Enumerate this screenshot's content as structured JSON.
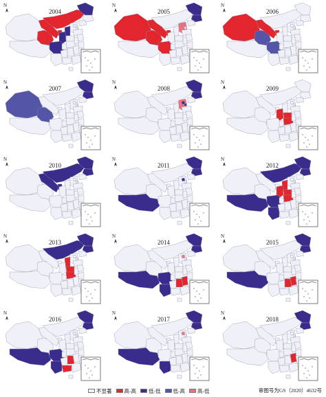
{
  "colors": {
    "ns": "#f0f1f8",
    "hh": "#e3262d",
    "ll": "#3a2c8c",
    "lh": "#5555a8",
    "hl": "#f07080"
  },
  "legend": [
    {
      "key": "ns",
      "label": "不显著"
    },
    {
      "key": "hh",
      "label": "高-高"
    },
    {
      "key": "ll",
      "label": "低-低"
    },
    {
      "key": "lh",
      "label": "低-高"
    },
    {
      "key": "hl",
      "label": "高-低"
    }
  ],
  "north_symbol": "N",
  "approval_number": "审图号为GS（2020）4632号",
  "maps": [
    {
      "year": "2004",
      "regions": {
        "xinjiang": "ns",
        "xizang": "ns",
        "qinghai": "hh",
        "gansu": "hh",
        "sichuan": "ll",
        "ningxia": "hh",
        "shaanxi": "ll",
        "neimenggu": "hh",
        "heilongjiang": "ll",
        "shanxi": "ll"
      }
    },
    {
      "year": "2005",
      "regions": {
        "xinjiang": "hh",
        "qinghai": "hh",
        "gansu": "hh",
        "sichuan": "hh",
        "ningxia": "hh",
        "heilongjiang": "ll",
        "jilin": "ll",
        "beijing": "hl",
        "hebei": "hl"
      }
    },
    {
      "year": "2006",
      "regions": {
        "xinjiang": "hh",
        "xizang": "ns",
        "qinghai": "lh",
        "gansu": "hh",
        "sichuan": "lh",
        "ningxia": "hh"
      }
    },
    {
      "year": "2007",
      "regions": {
        "xinjiang": "lh",
        "xizang": "ns",
        "qinghai": "lh",
        "heilongjiang": "ll",
        "jilin": "ll"
      }
    },
    {
      "year": "2008",
      "regions": {
        "heilongjiang": "ll",
        "jilin": "ll",
        "beijing": "ll",
        "tianjin": "ll",
        "hebei": "hl"
      }
    },
    {
      "year": "2009",
      "regions": {
        "henan": "hh",
        "hubei": "hh",
        "shaanxi": "hh"
      }
    },
    {
      "year": "2010",
      "regions": {
        "neimenggu": "ll",
        "heilongjiang": "ll",
        "jilin": "ll",
        "ningxia": "ll",
        "gansu": "ll"
      }
    },
    {
      "year": "2011",
      "regions": {
        "xizang": "ll",
        "heilongjiang": "ll",
        "jilin": "ll",
        "beijing": "ll"
      }
    },
    {
      "year": "2012",
      "regions": {
        "xizang": "ll",
        "neimenggu": "ll",
        "heilongjiang": "ll",
        "jilin": "ll",
        "shanxi": "hh",
        "henan": "hh",
        "hubei": "hh",
        "shaanxi": "hh",
        "sichuan": "ll",
        "yunnan": "ll"
      }
    },
    {
      "year": "2013",
      "regions": {
        "neimenggu": "ll",
        "heilongjiang": "ll",
        "jilin": "ll",
        "shanxi": "hh",
        "henan": "hh",
        "hubei": "hh"
      }
    },
    {
      "year": "2014",
      "regions": {
        "xizang": "ll",
        "sichuan": "ll",
        "yunnan": "ll",
        "heilongjiang": "ll",
        "jilin": "ll",
        "beijing": "hl",
        "jiangxi": "hh",
        "hunan": "hh"
      }
    },
    {
      "year": "2015",
      "regions": {
        "xizang": "ll",
        "heilongjiang": "ll",
        "jilin": "ll",
        "jiangxi": "hh",
        "hunan": "hh"
      }
    },
    {
      "year": "2016",
      "regions": {
        "xizang": "ll",
        "yunnan": "ll",
        "sichuan": "ll",
        "heilongjiang": "ll",
        "jilin": "ll",
        "hunan": "hh",
        "guangxi": "hh"
      }
    },
    {
      "year": "2017",
      "regions": {
        "xizang": "ll",
        "yunnan": "ll",
        "heilongjiang": "ll",
        "jilin": "ll",
        "beijing": "hl"
      }
    },
    {
      "year": "2018",
      "regions": {
        "heilongjiang": "ll",
        "jilin": "ll",
        "jiangxi": "hh"
      }
    }
  ]
}
